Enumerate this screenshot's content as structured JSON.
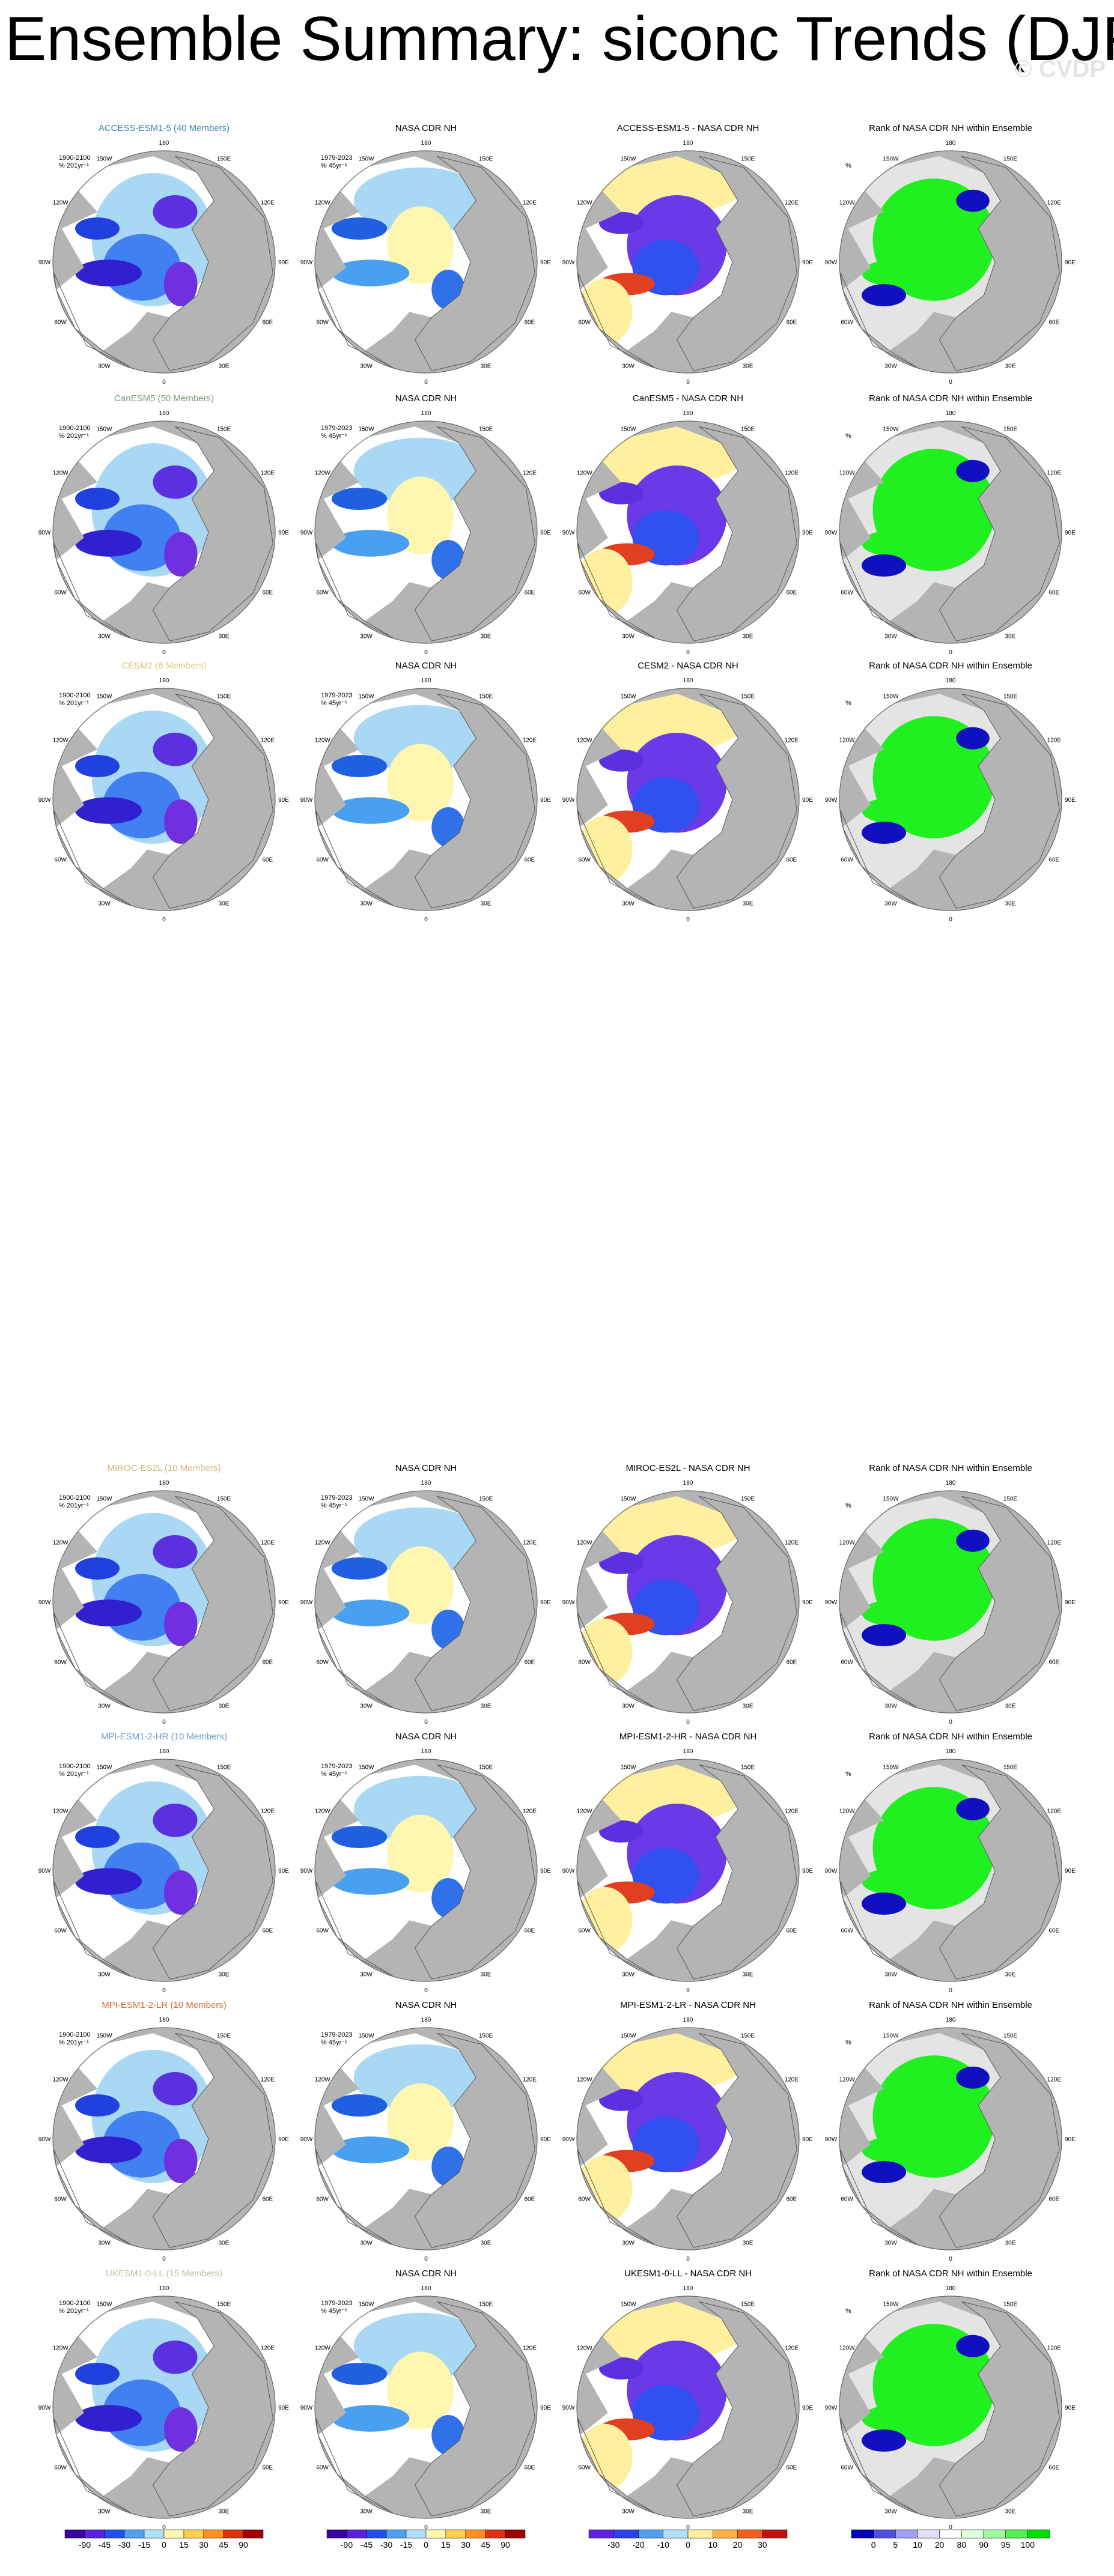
{
  "title": "Ensemble Summary: siconc Trends (DJF)",
  "watermark": "© CVDP",
  "longitude_labels": [
    "180",
    "150E",
    "120E",
    "90E",
    "60E",
    "30E",
    "0",
    "30W",
    "60W",
    "90W",
    "120W",
    "150W"
  ],
  "ensemble_label": [
    "1900-2100",
    "% 201yr⁻¹"
  ],
  "observation_label": [
    "1979-2023",
    "% 45yr⁻¹"
  ],
  "rank_label": "%",
  "rows": [
    {
      "model_color": "#3a8ab0",
      "panels": [
        "ACCESS-ESM1-5 (40 Members)",
        "NASA CDR NH",
        "ACCESS-ESM1-5 - NASA CDR NH",
        "Rank of NASA CDR NH within Ensemble"
      ]
    },
    {
      "model_color": "#7a9a80",
      "panels": [
        "CanESM5 (50 Members)",
        "NASA CDR NH",
        "CanESM5 - NASA CDR NH",
        "Rank of NASA CDR NH within Ensemble"
      ]
    },
    {
      "model_color": "#e0c47a",
      "panels": [
        "CESM2 (6 Members)",
        "NASA CDR NH",
        "CESM2 - NASA CDR NH",
        "Rank of NASA CDR NH within Ensemble"
      ]
    },
    {
      "model_color": "#d8b478",
      "panels": [
        "MIROC-ES2L (10 Members)",
        "NASA CDR NH",
        "MIROC-ES2L - NASA CDR NH",
        "Rank of NASA CDR NH within Ensemble"
      ]
    },
    {
      "model_color": "#6a9ad0",
      "panels": [
        "MPI-ESM1-2-HR (10 Members)",
        "NASA CDR NH",
        "MPI-ESM1-2-HR - NASA CDR NH",
        "Rank of NASA CDR NH within Ensemble"
      ]
    },
    {
      "model_color": "#d86a3a",
      "panels": [
        "MPI-ESM1-2-LR (10 Members)",
        "NASA CDR NH",
        "MPI-ESM1-2-LR - NASA CDR NH",
        "Rank of NASA CDR NH within Ensemble"
      ]
    },
    {
      "model_color": "#c0c0a0",
      "panels": [
        "UKESM1-0-LL (15 Members)",
        "NASA CDR NH",
        "UKESM1-0-LL - NASA CDR NH",
        "Rank of NASA CDR NH within Ensemble"
      ]
    }
  ],
  "colorbars": [
    [
      -90,
      -45,
      -30,
      -15,
      0,
      15,
      30,
      45,
      90
    ],
    [
      -90,
      -45,
      -30,
      -15,
      0,
      15,
      30,
      45,
      90
    ],
    [
      -30,
      -20,
      -10,
      0,
      10,
      20,
      30
    ],
    [
      0,
      5,
      10,
      20,
      80,
      90,
      95,
      100
    ]
  ]
}
